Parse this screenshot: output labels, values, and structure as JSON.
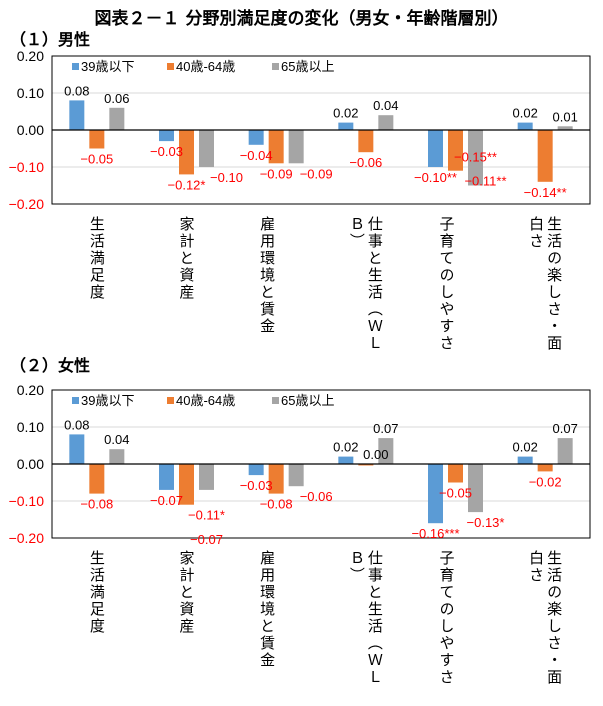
{
  "title": "図表２－１ 分野別満足度の変化（男女・年齢階層別）",
  "chart_data": [
    {
      "type": "bar",
      "subtitle": "（１）男性",
      "categories": [
        "生活満足度",
        "家計と資産",
        "雇用環境と賃金",
        "仕事と生活（ＷＬＢ）",
        "子育てのしやすさ",
        "生活の楽しさ・面白さ"
      ],
      "ylim": [
        -0.2,
        0.2
      ],
      "yticks": [
        "0.20",
        "0.10",
        "0.00",
        "-0.10",
        "-0.20"
      ],
      "grid": true,
      "legend": "top-left",
      "series": [
        {
          "name": "39歳以下",
          "color": "#5b9bd5",
          "values": [
            0.08,
            -0.03,
            -0.04,
            0.02,
            -0.1,
            0.02
          ],
          "labels": [
            "0.08",
            "-0.03",
            "-0.04",
            "0.02",
            "-0.10**",
            "0.02"
          ]
        },
        {
          "name": "40歳-64歳",
          "color": "#ed7d31",
          "values": [
            -0.05,
            -0.12,
            -0.09,
            -0.06,
            -0.11,
            -0.14
          ],
          "labels": [
            "-0.05",
            "-0.12*",
            "-0.09",
            "-0.06",
            "-0.11**",
            "-0.14**"
          ]
        },
        {
          "name": "65歳以上",
          "color": "#a5a5a5",
          "values": [
            0.06,
            -0.1,
            -0.09,
            0.04,
            -0.15,
            0.01
          ],
          "labels": [
            "0.06",
            "-0.10",
            "-0.09",
            "0.04",
            "-0.15**",
            "0.01"
          ]
        }
      ]
    },
    {
      "type": "bar",
      "subtitle": "（２）女性",
      "categories": [
        "生活満足度",
        "家計と資産",
        "雇用環境と賃金",
        "仕事と生活（ＷＬＢ）",
        "子育てのしやすさ",
        "生活の楽しさ・面白さ"
      ],
      "ylim": [
        -0.2,
        0.2
      ],
      "yticks": [
        "0.20",
        "0.10",
        "0.00",
        "-0.10",
        "-0.20"
      ],
      "grid": true,
      "legend": "top-left",
      "series": [
        {
          "name": "39歳以下",
          "color": "#5b9bd5",
          "values": [
            0.08,
            -0.07,
            -0.03,
            0.02,
            -0.16,
            0.02
          ],
          "labels": [
            "0.08",
            "-0.07",
            "-0.03",
            "0.02",
            "-0.16***",
            "0.02"
          ]
        },
        {
          "name": "40歳-64歳",
          "color": "#ed7d31",
          "values": [
            -0.08,
            -0.11,
            -0.08,
            0.0,
            -0.05,
            -0.02
          ],
          "labels": [
            "-0.08",
            "-0.11*",
            "-0.08",
            "0.00",
            "-0.05",
            "-0.02"
          ]
        },
        {
          "name": "65歳以上",
          "color": "#a5a5a5",
          "values": [
            0.04,
            -0.07,
            -0.06,
            0.07,
            -0.13,
            0.07
          ],
          "labels": [
            "0.04",
            "-0.07",
            "-0.06",
            "0.07",
            "-0.13*",
            "0.07"
          ]
        }
      ]
    }
  ],
  "colors": {
    "positive_label": "#000000",
    "negative_label": "#ff0000"
  }
}
